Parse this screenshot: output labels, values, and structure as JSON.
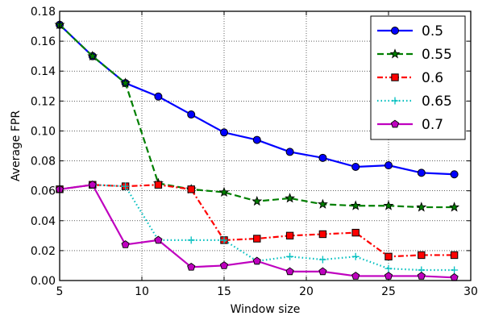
{
  "chart_data": {
    "type": "line",
    "title": "",
    "xlabel": "Window size",
    "ylabel": "Average FPR",
    "xlim": [
      5,
      30
    ],
    "ylim": [
      0,
      0.18
    ],
    "xticks": [
      5,
      10,
      15,
      20,
      25,
      30
    ],
    "xtick_labels": [
      "5",
      "10",
      "15",
      "20",
      "25",
      "30"
    ],
    "yticks": [
      0,
      0.02,
      0.04,
      0.06,
      0.08,
      0.1,
      0.12,
      0.14,
      0.16,
      0.18
    ],
    "ytick_labels": [
      "0.00",
      "0.02",
      "0.04",
      "0.06",
      "0.08",
      "0.10",
      "0.12",
      "0.14",
      "0.16",
      "0.18"
    ],
    "grid": true,
    "legend_position": "top-right",
    "x": [
      5,
      7,
      9,
      11,
      13,
      15,
      17,
      19,
      21,
      23,
      25,
      27,
      29
    ],
    "series": [
      {
        "name": "0.5",
        "color": "#0000ff",
        "line_style": "solid",
        "marker": "circle",
        "marker_color": "#0000ff",
        "values": [
          0.171,
          0.15,
          0.132,
          0.123,
          0.111,
          0.099,
          0.094,
          0.086,
          0.082,
          0.076,
          0.077,
          0.072,
          0.071
        ]
      },
      {
        "name": "0.55",
        "color": "#007f00",
        "line_style": "dashed",
        "marker": "star",
        "marker_color": "#007f00",
        "values": [
          0.171,
          0.15,
          0.132,
          0.065,
          0.061,
          0.059,
          0.053,
          0.055,
          0.051,
          0.05,
          0.05,
          0.049,
          0.049
        ]
      },
      {
        "name": "0.6",
        "color": "#ff0000",
        "line_style": "dashdot",
        "marker": "square",
        "marker_color": "#ff0000",
        "values": [
          0.061,
          0.064,
          0.063,
          0.064,
          0.061,
          0.027,
          0.028,
          0.03,
          0.031,
          0.032,
          0.016,
          0.017,
          0.017
        ]
      },
      {
        "name": "0.65",
        "color": "#00bfbf",
        "line_style": "dotted",
        "marker": "plus",
        "marker_color": "#00bfbf",
        "values": [
          0.061,
          0.064,
          0.063,
          0.027,
          0.027,
          0.027,
          0.013,
          0.016,
          0.014,
          0.016,
          0.008,
          0.007,
          0.007
        ]
      },
      {
        "name": "0.7",
        "color": "#bf00bf",
        "line_style": "solid",
        "marker": "pentagon",
        "marker_color": "#bf00bf",
        "values": [
          0.061,
          0.064,
          0.024,
          0.027,
          0.009,
          0.01,
          0.013,
          0.006,
          0.006,
          0.003,
          0.003,
          0.003,
          0.002
        ]
      }
    ]
  }
}
